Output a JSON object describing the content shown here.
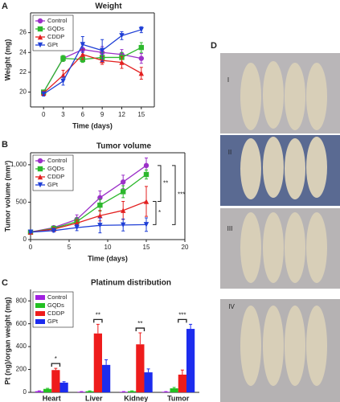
{
  "chart_data": [
    {
      "type": "line",
      "panel": "A",
      "title": "Weight",
      "x_label": "Time (days)",
      "y_label": "Weight (mg)",
      "x": [
        0,
        3,
        6,
        9,
        12,
        15
      ],
      "xlim": [
        -2,
        17
      ],
      "xticks": [
        0,
        3,
        6,
        9,
        12,
        15
      ],
      "ylim": [
        18.5,
        28
      ],
      "yticks": [
        20,
        22,
        24,
        26
      ],
      "series": [
        {
          "name": "Control",
          "color": "#9b30c8",
          "marker": "circle",
          "values": [
            20,
            23.4,
            24.3,
            24.0,
            23.8,
            23.4
          ],
          "errors": [
            0.2,
            0.3,
            0.5,
            0.6,
            0.5,
            0.5
          ]
        },
        {
          "name": "GQDs",
          "color": "#2db82d",
          "marker": "square",
          "values": [
            20,
            23.4,
            23.3,
            23.5,
            23.5,
            24.5
          ],
          "errors": [
            0.2,
            0.3,
            0.3,
            0.5,
            0.5,
            0.5
          ]
        },
        {
          "name": "CDDP",
          "color": "#e32020",
          "marker": "triangle-up",
          "values": [
            19.9,
            21.7,
            23.8,
            23.2,
            23.0,
            21.9
          ],
          "errors": [
            0.2,
            0.5,
            0.5,
            0.4,
            0.6,
            0.6
          ]
        },
        {
          "name": "GPt",
          "color": "#1f3fd6",
          "marker": "triangle-down",
          "values": [
            19.8,
            21.1,
            24.8,
            24.2,
            25.7,
            26.3
          ],
          "errors": [
            0.2,
            0.4,
            0.8,
            1.1,
            0.4,
            0.3
          ]
        }
      ]
    },
    {
      "type": "line",
      "panel": "B",
      "title": "Tumor volume",
      "x_label": "Time (days)",
      "y_label": "Tumor volume (mm³)",
      "x": [
        0,
        3,
        6,
        9,
        12,
        15
      ],
      "xlim": [
        0,
        20
      ],
      "xticks": [
        0,
        5,
        10,
        15,
        20
      ],
      "ylim": [
        0,
        1160
      ],
      "yticks": [
        0,
        500,
        {
          "value": 1000,
          "label": "1,000"
        }
      ],
      "series": [
        {
          "name": "Control",
          "color": "#9b30c8",
          "marker": "circle",
          "values": [
            100,
            160,
            270,
            560,
            770,
            990
          ],
          "errors": [
            10,
            20,
            60,
            90,
            90,
            100
          ]
        },
        {
          "name": "GQDs",
          "color": "#2db82d",
          "marker": "square",
          "values": [
            100,
            150,
            240,
            460,
            640,
            870
          ],
          "errors": [
            10,
            20,
            50,
            80,
            80,
            60
          ]
        },
        {
          "name": "CDDP",
          "color": "#e32020",
          "marker": "triangle-up",
          "values": [
            100,
            140,
            220,
            320,
            390,
            510
          ],
          "errors": [
            10,
            20,
            40,
            70,
            120,
            200
          ]
        },
        {
          "name": "GPt",
          "color": "#1f3fd6",
          "marker": "triangle-down",
          "values": [
            100,
            120,
            160,
            190,
            195,
            200
          ],
          "errors": [
            10,
            20,
            40,
            100,
            80,
            90
          ]
        }
      ],
      "annotations": [
        "**",
        "*",
        "***"
      ]
    },
    {
      "type": "bar",
      "panel": "C",
      "title": "Platinum distribution",
      "y_label": "Pt (ng)/organ weight (mg)",
      "categories": [
        "Heart",
        "Liver",
        "Kidney",
        "Tumor"
      ],
      "ylim": [
        0,
        900
      ],
      "yticks": [
        0,
        200,
        400,
        600,
        800
      ],
      "series": [
        {
          "name": "Control",
          "color": "#a020e0",
          "values": [
            10,
            5,
            5,
            5
          ],
          "errors": [
            3,
            2,
            2,
            2
          ]
        },
        {
          "name": "GQDs",
          "color": "#22c022",
          "values": [
            30,
            10,
            10,
            35
          ],
          "errors": [
            5,
            3,
            3,
            8
          ]
        },
        {
          "name": "CDDP",
          "color": "#ee1c1c",
          "values": [
            195,
            515,
            420,
            155
          ],
          "errors": [
            15,
            80,
            100,
            40
          ]
        },
        {
          "name": "GPt",
          "color": "#1c2cee",
          "values": [
            85,
            240,
            175,
            555
          ],
          "errors": [
            8,
            45,
            30,
            40
          ]
        }
      ],
      "annotations": [
        "*",
        "**",
        "**",
        "***"
      ]
    }
  ],
  "photo_panel": {
    "panel": "D",
    "rows": [
      "I",
      "II",
      "III",
      "IV"
    ]
  }
}
